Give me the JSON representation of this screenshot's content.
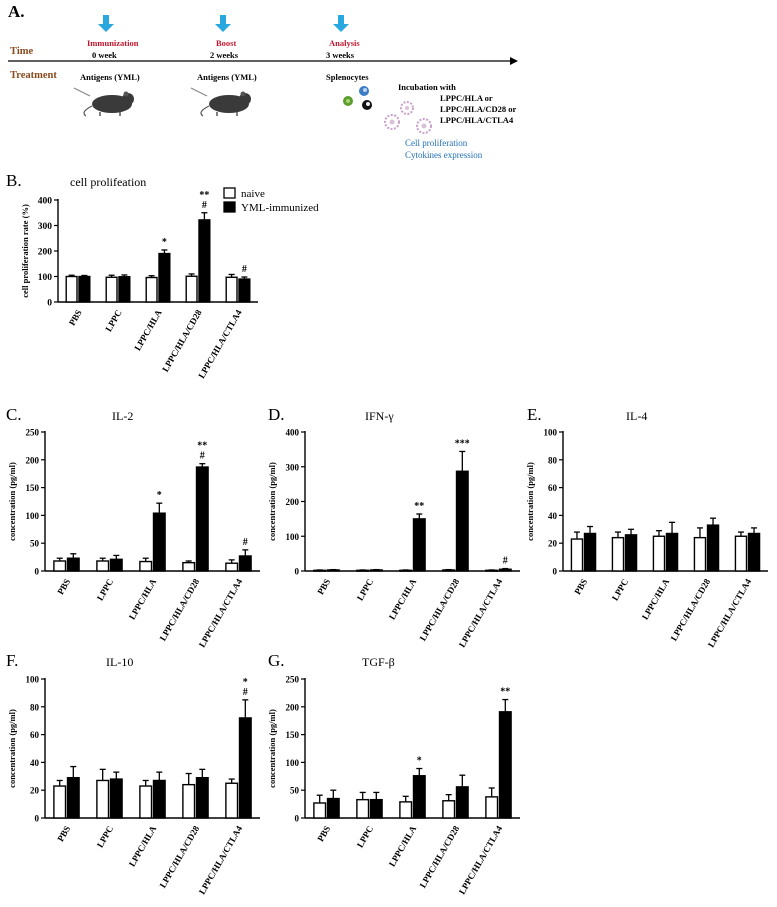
{
  "panelA": {
    "letter": "A.",
    "row_labels": {
      "time": "Time",
      "treatment": "Treatment"
    },
    "stages": [
      {
        "event": "Immunization",
        "time": "0 week",
        "treatment": "Antigens (YML)"
      },
      {
        "event": "Boost",
        "time": "2 weeks",
        "treatment": "Antigens (YML)"
      },
      {
        "event": "Analysis",
        "time": "3 weeks",
        "treatment": "Splenocytes"
      }
    ],
    "incubation": {
      "title": "Incubation with",
      "lines": [
        "LPPC/HLA or",
        "LPPC/HLA/CD28 or",
        "LPPC/HLA/CTLA4"
      ]
    },
    "readouts": [
      "Cell proliferation",
      "Cytokines expression"
    ],
    "colors": {
      "arrow": "#29a8e0",
      "event_text": "#c0172e",
      "row_label": "#8b4a1d",
      "readout": "#1f6fb5",
      "splenocyte_green": "#5a9e2e",
      "splenocyte_blue": "#3b7cc4",
      "lppc_pink": "#c9a0c8"
    }
  },
  "legend": {
    "naive": "naive",
    "immunized": "YML-immunized"
  },
  "chart_data": [
    {
      "id": "B",
      "panel_letter": "B.",
      "type": "bar",
      "title": "cell prolifeation",
      "ylabel": "cell proliferation rate (%)",
      "ylim": [
        0,
        400
      ],
      "yticks": [
        0,
        100,
        200,
        300,
        400
      ],
      "categories": [
        "PBS",
        "LPPC",
        "LPPC/HLA",
        "LPPC/HLA/CD28",
        "LPPC/HLA/CTLA4"
      ],
      "series": [
        {
          "name": "naive",
          "values": [
            100,
            97,
            96,
            101,
            97
          ],
          "errors": [
            5,
            8,
            7,
            9,
            11
          ]
        },
        {
          "name": "YML-immunized",
          "values": [
            100,
            99,
            190,
            322,
            90
          ],
          "errors": [
            4,
            7,
            14,
            28,
            8
          ]
        }
      ],
      "annotations": [
        "",
        "",
        "*",
        "**\n#",
        "#"
      ]
    },
    {
      "id": "C",
      "panel_letter": "C.",
      "type": "bar",
      "title": "IL-2",
      "ylabel": "concentration (pg/ml)",
      "ylim": [
        0,
        250
      ],
      "yticks": [
        0,
        50,
        100,
        150,
        200,
        250
      ],
      "categories": [
        "PBS",
        "LPPC",
        "LPPC/HLA",
        "LPPC/HLA/CD28",
        "LPPC/HLA/CTLA4"
      ],
      "series": [
        {
          "name": "naive",
          "values": [
            18,
            18,
            17,
            15,
            14
          ],
          "errors": [
            5,
            5,
            6,
            3,
            6
          ]
        },
        {
          "name": "YML-immunized",
          "values": [
            23,
            21,
            104,
            187,
            27
          ],
          "errors": [
            8,
            7,
            18,
            6,
            11
          ]
        }
      ],
      "annotations": [
        "",
        "",
        "*",
        "**\n#",
        "#"
      ]
    },
    {
      "id": "D",
      "panel_letter": "D.",
      "type": "bar",
      "title": "IFN-γ",
      "ylabel": "concentration (pg/ml)",
      "ylim": [
        0,
        400
      ],
      "yticks": [
        0,
        100,
        200,
        300,
        400
      ],
      "categories": [
        "PBS",
        "LPPC",
        "LPPC/HLA",
        "LPPC/HLA/CD28",
        "LPPC/HLA/CTLA4"
      ],
      "series": [
        {
          "name": "naive",
          "values": [
            2,
            2,
            2,
            3,
            2
          ],
          "errors": [
            1,
            1,
            1,
            1,
            1
          ]
        },
        {
          "name": "YML-immunized",
          "values": [
            3,
            3,
            150,
            287,
            5
          ],
          "errors": [
            1,
            1,
            14,
            57,
            2
          ]
        }
      ],
      "annotations": [
        "",
        "",
        "**",
        "***",
        "#"
      ]
    },
    {
      "id": "E",
      "panel_letter": "E.",
      "type": "bar",
      "title": "IL-4",
      "ylabel": "concentration (pg/ml)",
      "ylim": [
        0,
        100
      ],
      "yticks": [
        0,
        20,
        40,
        60,
        80,
        100
      ],
      "categories": [
        "PBS",
        "LPPC",
        "LPPC/HLA",
        "LPPC/HLA/CD28",
        "LPPC/HLA/CTLA4"
      ],
      "series": [
        {
          "name": "naive",
          "values": [
            23,
            24,
            25,
            24,
            25
          ],
          "errors": [
            5,
            4,
            4,
            7,
            3
          ]
        },
        {
          "name": "YML-immunized",
          "values": [
            27,
            26,
            27,
            33,
            27
          ],
          "errors": [
            5,
            4,
            8,
            5,
            4
          ]
        }
      ],
      "annotations": [
        "",
        "",
        "",
        "",
        ""
      ]
    },
    {
      "id": "F",
      "panel_letter": "F.",
      "type": "bar",
      "title": "IL-10",
      "ylabel": "concentration (pg/ml)",
      "ylim": [
        0,
        100
      ],
      "yticks": [
        0,
        20,
        40,
        60,
        80,
        100
      ],
      "categories": [
        "PBS",
        "LPPC",
        "LPPC/HLA",
        "LPPC/HLA/CD28",
        "LPPC/HLA/CTLA4"
      ],
      "series": [
        {
          "name": "naive",
          "values": [
            23,
            27,
            23,
            24,
            25
          ],
          "errors": [
            4,
            8,
            4,
            8,
            3
          ]
        },
        {
          "name": "YML-immunized",
          "values": [
            29,
            28,
            27,
            29,
            72
          ],
          "errors": [
            8,
            5,
            6,
            6,
            13
          ]
        }
      ],
      "annotations": [
        "",
        "",
        "",
        "",
        "*\n#"
      ]
    },
    {
      "id": "G",
      "panel_letter": "G.",
      "type": "bar",
      "title": "TGF-β",
      "ylabel": "concentration (pg/ml)",
      "ylim": [
        0,
        250
      ],
      "yticks": [
        0,
        50,
        100,
        150,
        200,
        250
      ],
      "categories": [
        "PBS",
        "LPPC",
        "LPPC/HLA",
        "LPPC/HLA/CD28",
        "LPPC/HLA/CTLA4"
      ],
      "series": [
        {
          "name": "naive",
          "values": [
            27,
            33,
            29,
            31,
            38
          ],
          "errors": [
            14,
            13,
            10,
            11,
            16
          ]
        },
        {
          "name": "YML-immunized",
          "values": [
            35,
            33,
            76,
            56,
            191
          ],
          "errors": [
            15,
            13,
            13,
            21,
            22
          ]
        }
      ],
      "annotations": [
        "",
        "",
        "*",
        "",
        "**"
      ]
    }
  ]
}
